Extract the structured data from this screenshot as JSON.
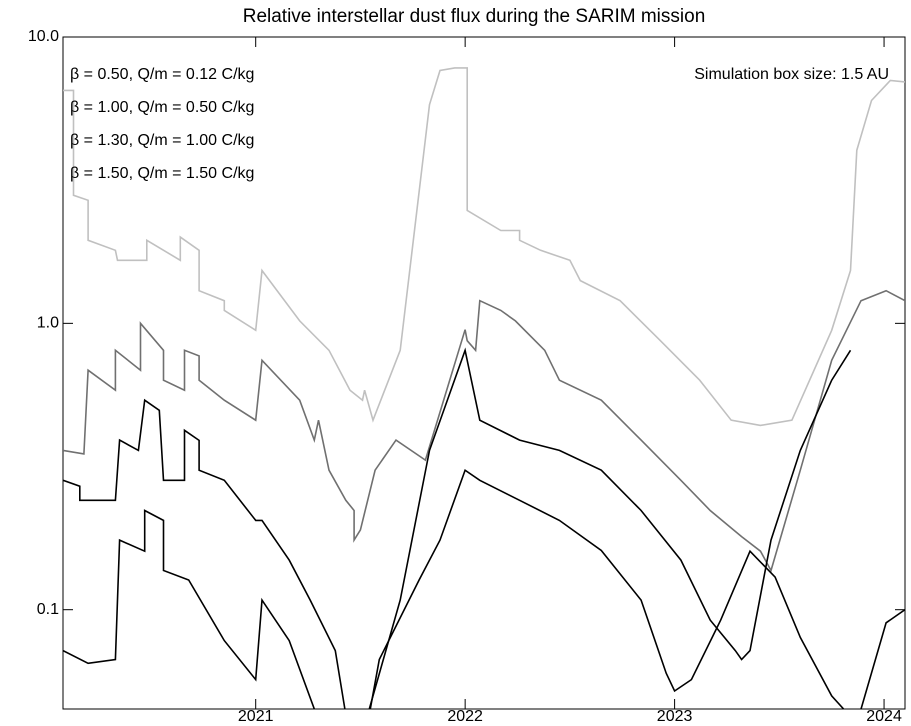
{
  "chart_data": {
    "type": "line",
    "title": "Relative interstellar dust flux during the SARIM mission",
    "annotation": "Simulation box size: 1.5 AU",
    "log_y": true,
    "legend": "upper left",
    "xlim": [
      2020.08,
      2024.1
    ],
    "xticks": [
      2021,
      2022,
      2023,
      2024
    ],
    "ylim": [
      0.045,
      10
    ],
    "yticks": [
      {
        "value": 10,
        "label": "10.0"
      },
      {
        "value": 1,
        "label": "1.0"
      },
      0.1
    ],
    "series": [
      {
        "name": "β = 0.50, Q/m = 0.12 C/kg",
        "color": "#c0c0c0",
        "x": [
          2020.08,
          2020.13,
          2020.13,
          2020.2,
          2020.2,
          2020.33,
          2020.34,
          2020.48,
          2020.48,
          2020.64,
          2020.64,
          2020.73,
          2020.73,
          2020.85,
          2020.85,
          2021.0,
          2021.03,
          2021.21,
          2021.35,
          2021.45,
          2021.51,
          2021.52,
          2021.56,
          2021.69,
          2021.83,
          2021.88,
          2021.95,
          2022.01,
          2022.01,
          2022.17,
          2022.26,
          2022.26,
          2022.36,
          2022.5,
          2022.55,
          2022.74,
          2022.93,
          2023.12,
          2023.27,
          2023.41,
          2023.56,
          2023.75,
          2023.84,
          2023.87,
          2023.94,
          2024.03,
          2024.1
        ],
        "values": [
          6.51,
          6.51,
          2.8,
          2.69,
          1.95,
          1.8,
          1.66,
          1.66,
          1.95,
          1.66,
          2.0,
          1.8,
          1.3,
          1.2,
          1.11,
          0.946,
          1.53,
          1.02,
          0.805,
          0.584,
          0.539,
          0.584,
          0.459,
          0.805,
          5.8,
          7.64,
          7.8,
          7.8,
          2.48,
          2.11,
          2.11,
          1.95,
          1.8,
          1.66,
          1.41,
          1.2,
          0.873,
          0.633,
          0.459,
          0.44,
          0.459,
          0.946,
          1.53,
          4.02,
          6.0,
          7.05,
          6.97
        ]
      },
      {
        "name": "β = 1.00, Q/m = 0.50 C/kg",
        "color": "#707070",
        "x": [
          2020.08,
          2020.18,
          2020.2,
          2020.33,
          2020.33,
          2020.45,
          2020.45,
          2020.56,
          2020.56,
          2020.66,
          2020.66,
          2020.73,
          2020.73,
          2020.85,
          2021.0,
          2021.03,
          2021.21,
          2021.28,
          2021.3,
          2021.35,
          2021.43,
          2021.47,
          2021.47,
          2021.5,
          2021.57,
          2021.67,
          2021.81,
          2022.0,
          2022.01,
          2022.05,
          2022.07,
          2022.17,
          2022.24,
          2022.38,
          2022.45,
          2022.65,
          2022.84,
          2023.03,
          2023.17,
          2023.32,
          2023.41,
          2023.46,
          2023.6,
          2023.75,
          2023.89,
          2024.01,
          2024.1
        ],
        "values": [
          0.36,
          0.35,
          0.686,
          0.584,
          0.805,
          0.686,
          1.0,
          0.805,
          0.633,
          0.584,
          0.805,
          0.77,
          0.633,
          0.539,
          0.459,
          0.743,
          0.539,
          0.391,
          0.459,
          0.307,
          0.241,
          0.222,
          0.175,
          0.19,
          0.307,
          0.391,
          0.333,
          0.95,
          0.87,
          0.805,
          1.2,
          1.11,
          1.02,
          0.805,
          0.633,
          0.539,
          0.391,
          0.283,
          0.222,
          0.18,
          0.16,
          0.137,
          0.307,
          0.743,
          1.2,
          1.3,
          1.2
        ]
      },
      {
        "name": "β = 1.30, Q/m = 1.00 C/kg",
        "color": "#000000",
        "x": [
          2020.08,
          2020.16,
          2020.16,
          2020.33,
          2020.35,
          2020.44,
          2020.47,
          2020.54,
          2020.56,
          2020.66,
          2020.66,
          2020.73,
          2020.73,
          2020.85,
          2021.0,
          2021.03,
          2021.16,
          2021.26,
          2021.38,
          2021.45,
          2021.5,
          2021.69,
          2021.83,
          2022.0,
          2022.07,
          2022.26,
          2022.45,
          2022.65,
          2022.84,
          2023.03,
          2023.17,
          2023.29,
          2023.32,
          2023.36,
          2023.46,
          2023.6,
          2023.75,
          2023.84
        ],
        "values": [
          0.283,
          0.27,
          0.241,
          0.241,
          0.391,
          0.36,
          0.539,
          0.497,
          0.283,
          0.283,
          0.423,
          0.39,
          0.307,
          0.283,
          0.205,
          0.205,
          0.149,
          0.108,
          0.072,
          0.035,
          0.035,
          0.108,
          0.36,
          0.805,
          0.459,
          0.391,
          0.36,
          0.307,
          0.222,
          0.149,
          0.092,
          0.072,
          0.067,
          0.072,
          0.175,
          0.36,
          0.633,
          0.805
        ]
      },
      {
        "name": "β = 1.50, Q/m = 1.50 C/kg",
        "color": "#000000",
        "x": [
          2020.08,
          2020.2,
          2020.33,
          2020.35,
          2020.47,
          2020.47,
          2020.56,
          2020.56,
          2020.68,
          2020.85,
          2021.0,
          2021.03,
          2021.16,
          2021.28,
          2021.31,
          2021.52,
          2021.59,
          2021.78,
          2021.88,
          2022.0,
          2022.07,
          2022.26,
          2022.45,
          2022.65,
          2022.84,
          2022.96,
          2023.0,
          2023.08,
          2023.22,
          2023.36,
          2023.48,
          2023.6,
          2023.75,
          2023.87,
          2024.01,
          2024.1
        ],
        "values": [
          0.072,
          0.065,
          0.067,
          0.175,
          0.16,
          0.222,
          0.205,
          0.137,
          0.127,
          0.078,
          0.057,
          0.108,
          0.078,
          0.045,
          0.035,
          0.035,
          0.067,
          0.127,
          0.175,
          0.307,
          0.283,
          0.241,
          0.205,
          0.161,
          0.108,
          0.06,
          0.052,
          0.057,
          0.092,
          0.16,
          0.13,
          0.08,
          0.05,
          0.04,
          0.09,
          0.1
        ]
      }
    ]
  }
}
